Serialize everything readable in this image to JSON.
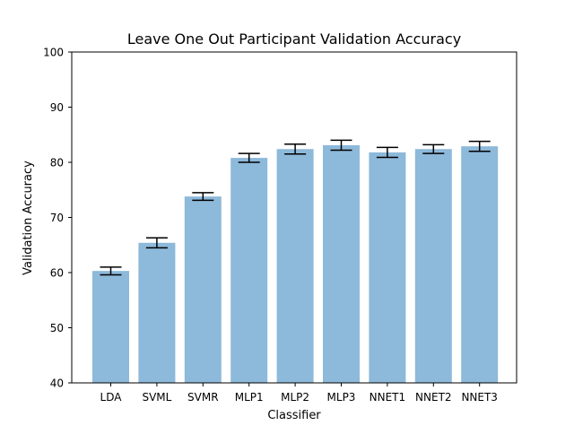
{
  "chart_data": {
    "type": "bar",
    "title": "Leave One Out Participant Validation Accuracy",
    "xlabel": "Classifier",
    "ylabel": "Validation Accuracy",
    "ylim": [
      40,
      100
    ],
    "yticks": [
      40,
      50,
      60,
      70,
      80,
      90,
      100
    ],
    "categories": [
      "LDA",
      "SVML",
      "SVMR",
      "MLP1",
      "MLP2",
      "MLP3",
      "NNET1",
      "NNET2",
      "NNET3"
    ],
    "values": [
      60.3,
      65.4,
      73.8,
      80.8,
      82.4,
      83.1,
      81.8,
      82.4,
      82.9
    ],
    "errors": [
      0.7,
      0.9,
      0.7,
      0.8,
      0.9,
      0.9,
      0.9,
      0.8,
      0.9
    ],
    "bar_color": "#8db9da",
    "grid": false,
    "legend": "none"
  }
}
